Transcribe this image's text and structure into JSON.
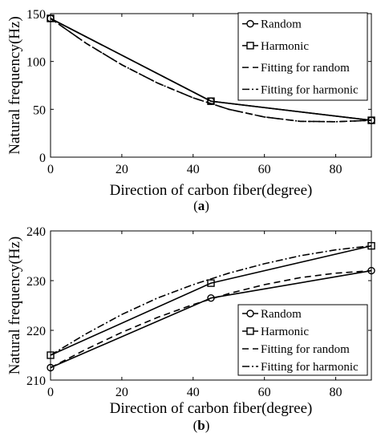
{
  "chart_data": [
    {
      "type": "line",
      "caption": "(a)",
      "xlabel": "Direction of carbon fiber(degree)",
      "ylabel": "Natural frequency(Hz)",
      "xlim": [
        0,
        90
      ],
      "ylim": [
        0,
        150
      ],
      "xticks": [
        0,
        20,
        40,
        60,
        80
      ],
      "yticks": [
        0,
        50,
        100,
        150
      ],
      "legend_position": "top-right",
      "series": [
        {
          "name": "Random",
          "style": "solid",
          "marker": "circle",
          "x": [
            0,
            45,
            90
          ],
          "y": [
            145,
            58.5,
            38.5
          ]
        },
        {
          "name": "Harmonic",
          "style": "solid",
          "marker": "square",
          "x": [
            0,
            45,
            90
          ],
          "y": [
            145,
            58.5,
            38.5
          ]
        },
        {
          "name": "Fitting for random",
          "style": "dashed",
          "marker": "none",
          "x": [
            0,
            10,
            20,
            30,
            40,
            50,
            60,
            70,
            80,
            90
          ],
          "y": [
            145,
            119,
            96.5,
            77.5,
            62,
            50,
            42,
            37.5,
            37,
            38.5
          ]
        },
        {
          "name": "Fitting for harmonic",
          "style": "dashdot",
          "marker": "none",
          "x": [
            0,
            10,
            20,
            30,
            40,
            50,
            60,
            70,
            80,
            90
          ],
          "y": [
            145,
            119,
            96.5,
            77.5,
            62,
            50,
            42,
            37.5,
            37,
            38.5
          ]
        }
      ]
    },
    {
      "type": "line",
      "caption": "(b)",
      "xlabel": "Direction of carbon fiber(degree)",
      "ylabel": "Natural frequency(Hz)",
      "xlim": [
        0,
        90
      ],
      "ylim": [
        210,
        240
      ],
      "xticks": [
        0,
        20,
        40,
        60,
        80
      ],
      "yticks": [
        210,
        220,
        230,
        240
      ],
      "legend_position": "bottom-right",
      "series": [
        {
          "name": "Random",
          "style": "solid",
          "marker": "circle",
          "x": [
            0,
            45,
            90
          ],
          "y": [
            212.5,
            226.5,
            232
          ]
        },
        {
          "name": "Harmonic",
          "style": "solid",
          "marker": "square",
          "x": [
            0,
            45,
            90
          ],
          "y": [
            215,
            229.5,
            237
          ]
        },
        {
          "name": "Fitting for random",
          "style": "dashed",
          "marker": "none",
          "x": [
            0,
            10,
            20,
            30,
            40,
            50,
            60,
            70,
            80,
            90
          ],
          "y": [
            212.5,
            216.2,
            219.6,
            222.6,
            225.2,
            227.4,
            229.2,
            230.6,
            231.5,
            232
          ]
        },
        {
          "name": "Fitting for harmonic",
          "style": "dashdot",
          "marker": "none",
          "x": [
            0,
            10,
            20,
            30,
            40,
            50,
            60,
            70,
            80,
            90
          ],
          "y": [
            215,
            219.3,
            223.2,
            226.5,
            229.2,
            231.5,
            233.4,
            235,
            236.2,
            237
          ]
        }
      ]
    }
  ]
}
